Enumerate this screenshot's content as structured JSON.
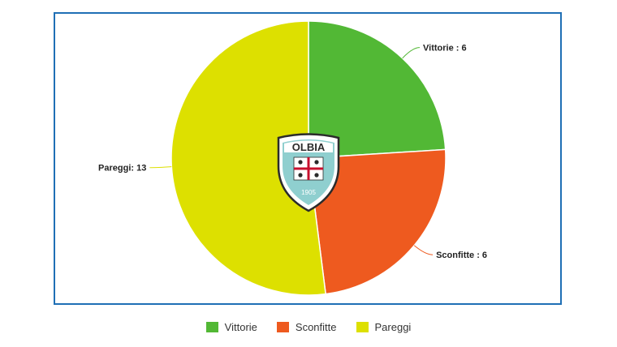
{
  "chart_data": {
    "type": "pie",
    "slices": [
      {
        "label": "Vittorie",
        "value": 6,
        "color": "#52b835",
        "callout": "Vittorie : 6"
      },
      {
        "label": "Sconfitte",
        "value": 6,
        "color": "#ee5a1f",
        "callout": "Sconfitte : 6"
      },
      {
        "label": "Pareggi",
        "value": 13,
        "color": "#dde000",
        "callout": "Pareggi: 13"
      }
    ],
    "legend_placement": "bottom"
  },
  "logo": {
    "name": "club-crest-icon",
    "text": "OLBIA",
    "year": "1905",
    "colors": {
      "teal": "#8fcfcf",
      "dark": "#2b2b2b",
      "red": "#c8102e"
    }
  }
}
